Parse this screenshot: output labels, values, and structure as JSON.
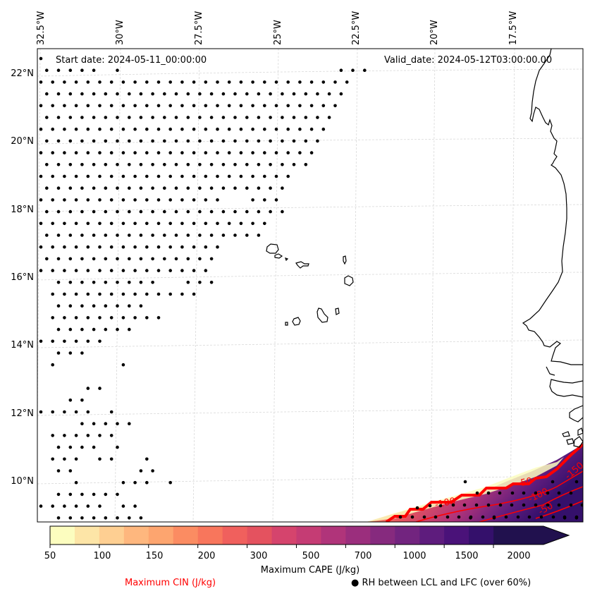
{
  "map": {
    "start_date_label": "Start date: 2024-05-11_00:00:00",
    "valid_date_label": "Valid_date: 2024-05-12T03:00:00.00",
    "lon_ticks": [
      "32.5°W",
      "30°W",
      "27.5°W",
      "25°W",
      "22.5°W",
      "20°W",
      "17.5°W"
    ],
    "lat_ticks": [
      "22°N",
      "20°N",
      "18°N",
      "16°N",
      "14°N",
      "12°N",
      "10°N"
    ],
    "gridlines": true,
    "dot_meaning": "RH between LCL and LFC (over 60%)",
    "cin_contour_labels": [
      "-50",
      "-100",
      "-150",
      "-50",
      "-100"
    ]
  },
  "colorbar": {
    "title": "Maximum CAPE (J/kg)",
    "tick_labels": [
      "50",
      "100",
      "150",
      "200",
      "300",
      "500",
      "700",
      "1000",
      "1500",
      "2000"
    ],
    "levels": [
      50,
      75,
      100,
      125,
      150,
      175,
      200,
      250,
      300,
      400,
      500,
      600,
      700,
      850,
      1000,
      1250,
      1500,
      1750,
      2000
    ],
    "colors": [
      "#fcfdbf",
      "#fde5a7",
      "#fecf92",
      "#feb77e",
      "#fda56f",
      "#fb8c62",
      "#f8765c",
      "#f0605d",
      "#e4525f",
      "#d5446d",
      "#c53c74",
      "#b0347a",
      "#9b2e7d",
      "#862a7e",
      "#72247f",
      "#5e1c7d",
      "#4a1279",
      "#34106b",
      "#21114e"
    ],
    "extend": "max"
  },
  "legend": {
    "cin_label": "Maximum CIN (J/kg)",
    "cin_color": "#ff0000",
    "rh_marker": "●",
    "rh_label": "RH between LCL and LFC (over 60%)"
  }
}
